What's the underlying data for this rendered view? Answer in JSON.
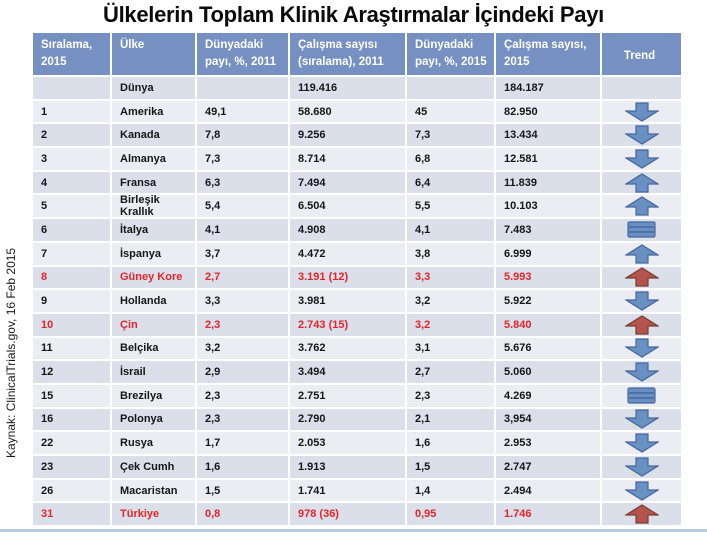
{
  "title": "Ülkelerin Toplam Klinik Araştırmalar İçindeki Payı",
  "source_note": "Kaynak: ClinicalTrials.gov, 16 Feb 2015",
  "colors": {
    "header_bg": "#7590c1",
    "row_dark": "#dbdfe9",
    "row_light": "#ecedf3",
    "red_text": "#e3242b",
    "arrow_blue_fill": "#6a8fc3",
    "arrow_blue_stroke": "#44689e",
    "arrow_red_fill": "#b3544d",
    "arrow_red_stroke": "#7d3b35",
    "bottom_line": "#b9cbe2"
  },
  "table": {
    "headers": [
      "Sıralama, 2015",
      "Ülke",
      "Dünyadaki payı, %, 2011",
      "Çalışma sayısı (sıralama), 2011",
      "Dünyadaki payı, %, 2015",
      "Çalışma sayısı, 2015",
      "Trend"
    ],
    "rows": [
      {
        "rank": "",
        "country": "Dünya",
        "share_2011": "",
        "studies_2011": "119.416",
        "share_2015": "",
        "studies_2015": "184.187",
        "trend": "none",
        "highlight": false
      },
      {
        "rank": "1",
        "country": "Amerika",
        "share_2011": "49,1",
        "studies_2011": "58.680",
        "share_2015": "45",
        "studies_2015": "82.950",
        "trend": "down",
        "highlight": false
      },
      {
        "rank": "2",
        "country": "Kanada",
        "share_2011": "7,8",
        "studies_2011": "9.256",
        "share_2015": "7,3",
        "studies_2015": "13.434",
        "trend": "down",
        "highlight": false
      },
      {
        "rank": "3",
        "country": "Almanya",
        "share_2011": "7,3",
        "studies_2011": "8.714",
        "share_2015": "6,8",
        "studies_2015": "12.581",
        "trend": "down",
        "highlight": false
      },
      {
        "rank": "4",
        "country": "Fransa",
        "share_2011": "6,3",
        "studies_2011": "7.494",
        "share_2015": "6,4",
        "studies_2015": "11.839",
        "trend": "up",
        "highlight": false
      },
      {
        "rank": "5",
        "country": "Birleşik Krallık",
        "share_2011": "5,4",
        "studies_2011": "6.504",
        "share_2015": "5,5",
        "studies_2015": "10.103",
        "trend": "up",
        "highlight": false
      },
      {
        "rank": "6",
        "country": "İtalya",
        "share_2011": "4,1",
        "studies_2011": "4.908",
        "share_2015": "4,1",
        "studies_2015": "7.483",
        "trend": "equal",
        "highlight": false
      },
      {
        "rank": "7",
        "country": "İspanya",
        "share_2011": "3,7",
        "studies_2011": "4.472",
        "share_2015": "3,8",
        "studies_2015": "6.999",
        "trend": "up",
        "highlight": false
      },
      {
        "rank": "8",
        "country": "Güney Kore",
        "share_2011": "2,7",
        "studies_2011": "3.191 (12)",
        "share_2015": "3,3",
        "studies_2015": "5.993",
        "trend": "up",
        "highlight": true
      },
      {
        "rank": "9",
        "country": "Hollanda",
        "share_2011": "3,3",
        "studies_2011": "3.981",
        "share_2015": "3,2",
        "studies_2015": "5.922",
        "trend": "down",
        "highlight": false
      },
      {
        "rank": "10",
        "country": "Çin",
        "share_2011": "2,3",
        "studies_2011": "2.743 (15)",
        "share_2015": "3,2",
        "studies_2015": "5.840",
        "trend": "up",
        "highlight": true
      },
      {
        "rank": "11",
        "country": "Belçika",
        "share_2011": "3,2",
        "studies_2011": "3.762",
        "share_2015": "3,1",
        "studies_2015": "5.676",
        "trend": "down",
        "highlight": false
      },
      {
        "rank": "12",
        "country": "İsrail",
        "share_2011": "2,9",
        "studies_2011": "3.494",
        "share_2015": "2,7",
        "studies_2015": "5.060",
        "trend": "down",
        "highlight": false
      },
      {
        "rank": "15",
        "country": "Brezilya",
        "share_2011": "2,3",
        "studies_2011": "2.751",
        "share_2015": "2,3",
        "studies_2015": "4.269",
        "trend": "equal",
        "highlight": false
      },
      {
        "rank": "16",
        "country": "Polonya",
        "share_2011": "2,3",
        "studies_2011": "2.790",
        "share_2015": "2,1",
        "studies_2015": "3,954",
        "trend": "down",
        "highlight": false
      },
      {
        "rank": "22",
        "country": "Rusya",
        "share_2011": "1,7",
        "studies_2011": "2.053",
        "share_2015": "1,6",
        "studies_2015": "2.953",
        "trend": "down",
        "highlight": false
      },
      {
        "rank": "23",
        "country": "Çek Cumh",
        "share_2011": "1,6",
        "studies_2011": "1.913",
        "share_2015": "1,5",
        "studies_2015": "2.747",
        "trend": "down",
        "highlight": false
      },
      {
        "rank": "26",
        "country": "Macaristan",
        "share_2011": "1,5",
        "studies_2011": "1.741",
        "share_2015": "1,4",
        "studies_2015": "2.494",
        "trend": "down",
        "highlight": false
      },
      {
        "rank": "31",
        "country": "Türkiye",
        "share_2011": "0,8",
        "studies_2011": "978 (36)",
        "share_2015": "0,95",
        "studies_2015": "1.746",
        "trend": "up",
        "highlight": true
      }
    ]
  }
}
